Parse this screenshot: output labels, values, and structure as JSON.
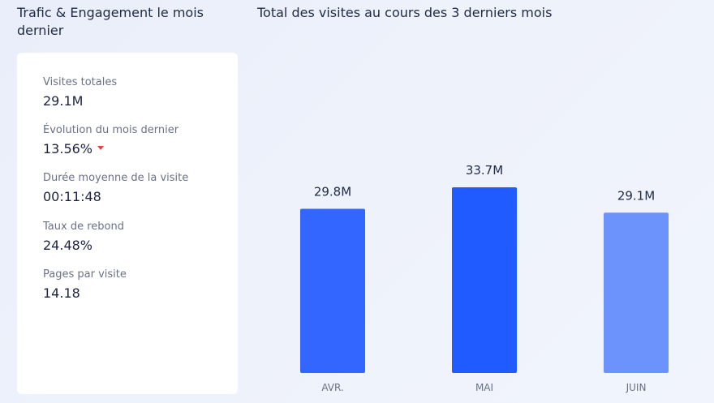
{
  "left_panel": {
    "title": "Trafic & Engagement le mois dernier",
    "metrics": [
      {
        "label": "Visites totales",
        "value": "29.1M"
      },
      {
        "label": "Évolution du mois dernier",
        "value": "13.56%",
        "trend": "down",
        "trend_color": "#e8453c"
      },
      {
        "label": "Durée moyenne de la visite",
        "value": "00:11:48"
      },
      {
        "label": "Taux de rebond",
        "value": "24.48%"
      },
      {
        "label": "Pages par visite",
        "value": "14.18"
      }
    ]
  },
  "chart_data": {
    "type": "bar",
    "title": "Total des visites au cours des 3 derniers mois",
    "categories": [
      "AVR.",
      "MAI",
      "JUIN"
    ],
    "values": [
      29.8,
      33.7,
      29.1
    ],
    "value_labels": [
      "29.8M",
      "33.7M",
      "29.1M"
    ],
    "unit": "M",
    "bar_colors": [
      "#3366ff",
      "#1f5bff",
      "#6b93fb"
    ],
    "xlabel": "",
    "ylabel": "",
    "grid": false
  }
}
